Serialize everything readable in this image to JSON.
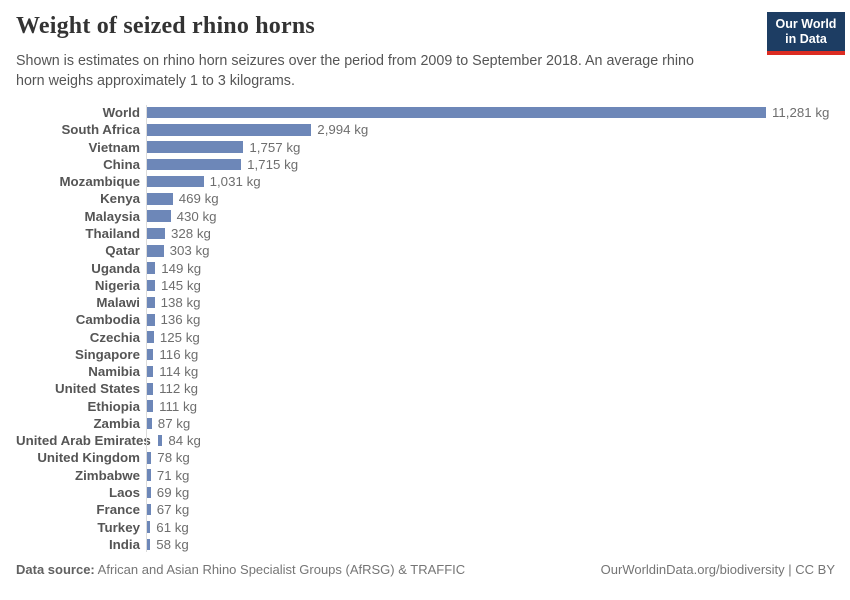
{
  "header": {
    "title": "Weight of seized rhino horns",
    "subtitle": "Shown is estimates on rhino horn seizures over the period from 2009 to September 2018. An average rhino horn weighs approximately 1 to 3 kilograms.",
    "logo": {
      "line1": "Our World",
      "line2": "in Data",
      "bg_color": "#1d3d63",
      "accent_color": "#dc2c22"
    }
  },
  "chart_data": {
    "type": "bar",
    "orientation": "horizontal",
    "unit": "kg",
    "bar_color": "#6d87b8",
    "axis_color": "#dcdcdc",
    "max_value": 11281,
    "categories": [
      "World",
      "South Africa",
      "Vietnam",
      "China",
      "Mozambique",
      "Kenya",
      "Malaysia",
      "Thailand",
      "Qatar",
      "Uganda",
      "Nigeria",
      "Malawi",
      "Cambodia",
      "Czechia",
      "Singapore",
      "Namibia",
      "United States",
      "Ethiopia",
      "Zambia",
      "United Arab Emirates",
      "United Kingdom",
      "Zimbabwe",
      "Laos",
      "France",
      "Turkey",
      "India"
    ],
    "values": [
      11281,
      2994,
      1757,
      1715,
      1031,
      469,
      430,
      328,
      303,
      149,
      145,
      138,
      136,
      125,
      116,
      114,
      112,
      111,
      87,
      84,
      78,
      71,
      69,
      67,
      61,
      58
    ],
    "value_labels": [
      "11,281 kg",
      "2,994 kg",
      "1,757 kg",
      "1,715 kg",
      "1,031 kg",
      "469 kg",
      "430 kg",
      "328 kg",
      "303 kg",
      "149 kg",
      "145 kg",
      "138 kg",
      "136 kg",
      "125 kg",
      "116 kg",
      "114 kg",
      "112 kg",
      "111 kg",
      "87 kg",
      "84 kg",
      "78 kg",
      "71 kg",
      "69 kg",
      "67 kg",
      "61 kg",
      "58 kg"
    ]
  },
  "footer": {
    "source_label": "Data source:",
    "source_text": "African and Asian Rhino Specialist Groups (AfRSG) & TRAFFIC",
    "link_text": "OurWorldinData.org/biodiversity | CC BY"
  }
}
